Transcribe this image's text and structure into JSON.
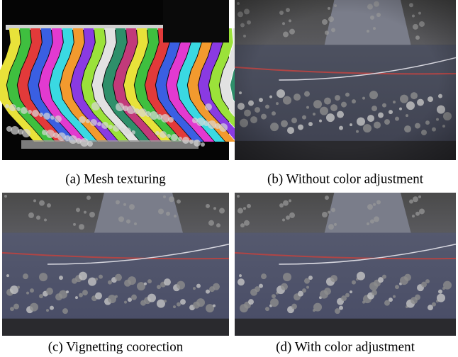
{
  "figure": {
    "panels": [
      {
        "caption": "(a) Mesh texturing"
      },
      {
        "caption": "(b) Without color adjustment"
      },
      {
        "caption": "(c) Vignetting coorection"
      },
      {
        "caption": "(d) With color adjustment"
      }
    ]
  }
}
